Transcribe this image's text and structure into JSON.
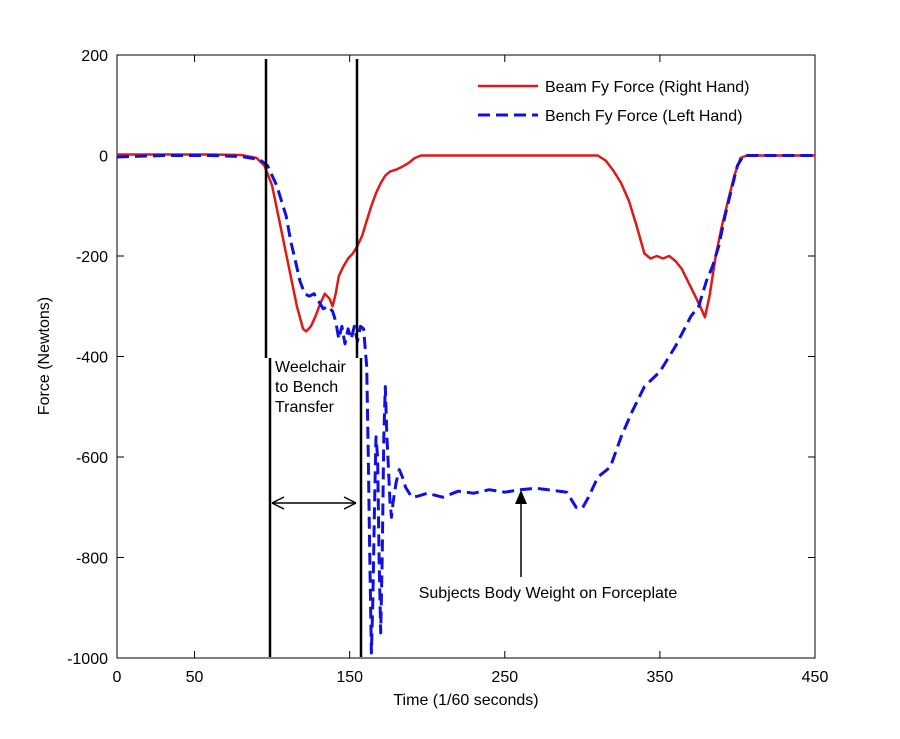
{
  "chart_data": {
    "type": "line",
    "xlabel": "Time (1/60 seconds)",
    "ylabel": "Force (Newtons)",
    "xlim": [
      0,
      450
    ],
    "ylim": [
      -1000,
      200
    ],
    "x_ticks": [
      0,
      50,
      150,
      250,
      350,
      450
    ],
    "y_ticks": [
      200,
      0,
      -200,
      -400,
      -600,
      -800,
      -1000
    ],
    "grid": false,
    "legend_position": "top-right",
    "series": [
      {
        "name": "Beam Fy Force (Right Hand)",
        "color": "#e01818",
        "style": "solid",
        "points": [
          [
            0,
            2
          ],
          [
            30,
            2
          ],
          [
            60,
            2
          ],
          [
            80,
            1
          ],
          [
            90,
            -5
          ],
          [
            95,
            -20
          ],
          [
            100,
            -60
          ],
          [
            104,
            -120
          ],
          [
            108,
            -180
          ],
          [
            112,
            -240
          ],
          [
            116,
            -300
          ],
          [
            120,
            -345
          ],
          [
            122,
            -350
          ],
          [
            125,
            -340
          ],
          [
            128,
            -320
          ],
          [
            131,
            -295
          ],
          [
            134,
            -275
          ],
          [
            137,
            -285
          ],
          [
            139,
            -300
          ],
          [
            141,
            -275
          ],
          [
            143,
            -240
          ],
          [
            146,
            -220
          ],
          [
            149,
            -205
          ],
          [
            152,
            -195
          ],
          [
            155,
            -180
          ],
          [
            158,
            -160
          ],
          [
            161,
            -130
          ],
          [
            164,
            -100
          ],
          [
            167,
            -75
          ],
          [
            170,
            -55
          ],
          [
            173,
            -40
          ],
          [
            176,
            -32
          ],
          [
            180,
            -28
          ],
          [
            184,
            -22
          ],
          [
            188,
            -15
          ],
          [
            192,
            -5
          ],
          [
            196,
            0
          ],
          [
            210,
            0
          ],
          [
            250,
            0
          ],
          [
            300,
            0
          ],
          [
            310,
            0
          ],
          [
            315,
            -10
          ],
          [
            320,
            -30
          ],
          [
            325,
            -55
          ],
          [
            330,
            -90
          ],
          [
            335,
            -140
          ],
          [
            340,
            -195
          ],
          [
            344,
            -205
          ],
          [
            348,
            -200
          ],
          [
            352,
            -205
          ],
          [
            356,
            -200
          ],
          [
            360,
            -210
          ],
          [
            364,
            -225
          ],
          [
            368,
            -250
          ],
          [
            372,
            -275
          ],
          [
            376,
            -300
          ],
          [
            379,
            -322
          ],
          [
            382,
            -280
          ],
          [
            386,
            -200
          ],
          [
            390,
            -140
          ],
          [
            394,
            -90
          ],
          [
            398,
            -40
          ],
          [
            402,
            -5
          ],
          [
            406,
            0
          ],
          [
            420,
            0
          ],
          [
            450,
            0
          ]
        ]
      },
      {
        "name": "Bench Fy Force (Left Hand)",
        "color": "#1010e0",
        "style": "dashed",
        "points": [
          [
            0,
            -3
          ],
          [
            30,
            0
          ],
          [
            60,
            0
          ],
          [
            80,
            -2
          ],
          [
            92,
            -8
          ],
          [
            97,
            -20
          ],
          [
            100,
            -40
          ],
          [
            103,
            -60
          ],
          [
            106,
            -90
          ],
          [
            109,
            -120
          ],
          [
            112,
            -170
          ],
          [
            115,
            -210
          ],
          [
            118,
            -250
          ],
          [
            121,
            -275
          ],
          [
            124,
            -280
          ],
          [
            127,
            -275
          ],
          [
            130,
            -290
          ],
          [
            133,
            -305
          ],
          [
            136,
            -300
          ],
          [
            139,
            -310
          ],
          [
            141,
            -330
          ],
          [
            143,
            -365
          ],
          [
            145,
            -340
          ],
          [
            147,
            -375
          ],
          [
            149,
            -345
          ],
          [
            151,
            -365
          ],
          [
            153,
            -340
          ],
          [
            155,
            -370
          ],
          [
            157,
            -340
          ],
          [
            159,
            -345
          ],
          [
            161,
            -420
          ],
          [
            162,
            -600
          ],
          [
            163,
            -800
          ],
          [
            164,
            -990
          ],
          [
            165,
            -880
          ],
          [
            166,
            -700
          ],
          [
            167,
            -560
          ],
          [
            168,
            -600
          ],
          [
            169,
            -800
          ],
          [
            170,
            -950
          ],
          [
            171,
            -800
          ],
          [
            172,
            -560
          ],
          [
            173,
            -460
          ],
          [
            174,
            -560
          ],
          [
            175,
            -620
          ],
          [
            176,
            -690
          ],
          [
            177,
            -720
          ],
          [
            178,
            -690
          ],
          [
            180,
            -650
          ],
          [
            182,
            -625
          ],
          [
            184,
            -640
          ],
          [
            186,
            -660
          ],
          [
            188,
            -670
          ],
          [
            190,
            -680
          ],
          [
            194,
            -678
          ],
          [
            200,
            -672
          ],
          [
            210,
            -680
          ],
          [
            220,
            -668
          ],
          [
            230,
            -672
          ],
          [
            240,
            -665
          ],
          [
            250,
            -670
          ],
          [
            260,
            -665
          ],
          [
            270,
            -662
          ],
          [
            280,
            -666
          ],
          [
            290,
            -670
          ],
          [
            296,
            -700
          ],
          [
            300,
            -702
          ],
          [
            304,
            -680
          ],
          [
            310,
            -640
          ],
          [
            318,
            -620
          ],
          [
            325,
            -560
          ],
          [
            332,
            -510
          ],
          [
            340,
            -460
          ],
          [
            350,
            -430
          ],
          [
            360,
            -380
          ],
          [
            370,
            -320
          ],
          [
            375,
            -300
          ],
          [
            380,
            -250
          ],
          [
            384,
            -220
          ],
          [
            388,
            -180
          ],
          [
            392,
            -120
          ],
          [
            396,
            -70
          ],
          [
            400,
            -20
          ],
          [
            404,
            0
          ],
          [
            420,
            0
          ],
          [
            450,
            0
          ]
        ]
      }
    ],
    "annotations": {
      "transfer_label": [
        "Weelchair",
        "to Bench",
        "Transfer"
      ],
      "bodyweight_label": "Subjects Body Weight on Forceplate"
    }
  }
}
